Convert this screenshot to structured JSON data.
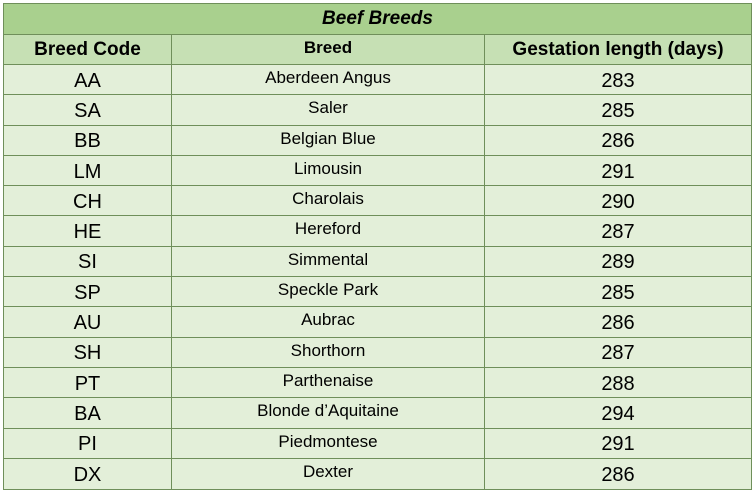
{
  "table": {
    "title": "Beef Breeds",
    "headers": [
      "Breed Code",
      "Breed",
      "Gestation length (days)"
    ],
    "rows": [
      [
        "AA",
        "Aberdeen Angus",
        "283"
      ],
      [
        "SA",
        "Saler",
        "285"
      ],
      [
        "BB",
        "Belgian Blue",
        "286"
      ],
      [
        "LM",
        "Limousin",
        "291"
      ],
      [
        "CH",
        "Charolais",
        "290"
      ],
      [
        "HE",
        "Hereford",
        "287"
      ],
      [
        "SI",
        "Simmental",
        "289"
      ],
      [
        "SP",
        "Speckle Park",
        "285"
      ],
      [
        "AU",
        "Aubrac",
        "286"
      ],
      [
        "SH",
        "Shorthorn",
        "287"
      ],
      [
        "PT",
        "Parthenaise",
        "288"
      ],
      [
        "BA",
        "Blonde d’Aquitaine",
        "294"
      ],
      [
        "PI",
        "Piedmontese",
        "291"
      ],
      [
        "DX",
        "Dexter",
        "286"
      ]
    ]
  },
  "colors": {
    "title_bg": "#a9d08e",
    "header_bg": "#c6e0b4",
    "body_bg": "#e3efd9",
    "border": "#6f8f5a"
  }
}
